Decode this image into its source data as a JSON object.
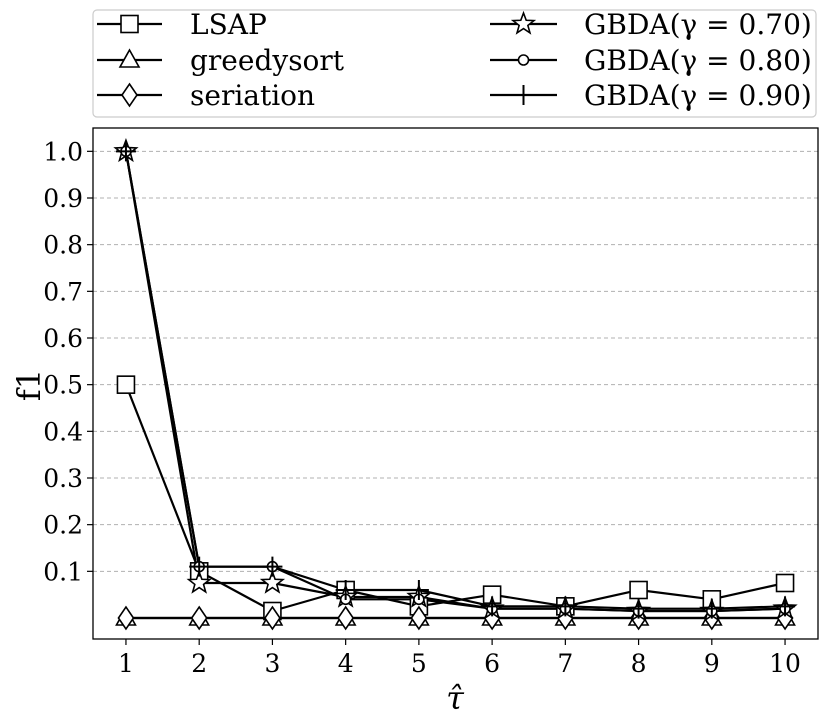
{
  "chart_data": {
    "type": "line",
    "xlabel": "τ̂",
    "ylabel": "f1",
    "x": [
      1,
      2,
      3,
      4,
      5,
      6,
      7,
      8,
      9,
      10
    ],
    "xlim": [
      0.55,
      10.45
    ],
    "ylim": [
      -0.045,
      1.05
    ],
    "yticks": [
      "0.1",
      "0.2",
      "0.3",
      "0.4",
      "0.5",
      "0.6",
      "0.7",
      "0.8",
      "0.9",
      "1.0"
    ],
    "xticks": [
      "1",
      "2",
      "3",
      "4",
      "5",
      "6",
      "7",
      "8",
      "9",
      "10"
    ],
    "grid": "y-dashed",
    "legend_position": "top",
    "series": [
      {
        "name": "LSAP",
        "marker": "square",
        "values": [
          0.5,
          0.1,
          0.015,
          0.06,
          0.025,
          0.05,
          0.025,
          0.06,
          0.04,
          0.075
        ]
      },
      {
        "name": "greedysort",
        "marker": "triangle",
        "values": [
          0,
          0,
          0,
          0,
          0,
          0,
          0,
          0,
          0,
          0
        ]
      },
      {
        "name": "seriation",
        "marker": "diamond",
        "values": [
          0,
          0,
          0,
          0,
          0,
          0,
          0,
          0,
          0,
          0
        ]
      },
      {
        "name": "GBDA(γ = 0.70)",
        "marker": "star",
        "values": [
          1.0,
          0.075,
          0.075,
          0.045,
          0.045,
          0.02,
          0.02,
          0.015,
          0.015,
          0.02
        ]
      },
      {
        "name": "GBDA(γ = 0.80)",
        "marker": "circle",
        "values": [
          1.0,
          0.11,
          0.11,
          0.04,
          0.04,
          0.02,
          0.02,
          0.015,
          0.015,
          0.02
        ]
      },
      {
        "name": "GBDA(γ = 0.90)",
        "marker": "plus",
        "values": [
          1.0,
          0.11,
          0.11,
          0.06,
          0.06,
          0.025,
          0.025,
          0.02,
          0.02,
          0.025
        ]
      }
    ]
  }
}
